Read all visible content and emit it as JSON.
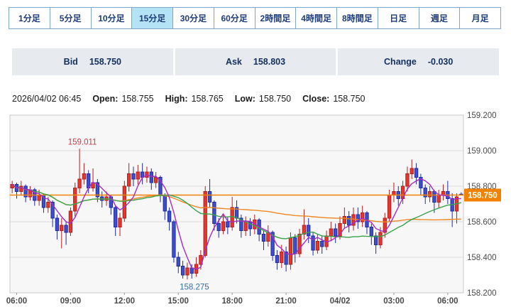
{
  "tabs": {
    "items": [
      {
        "id": "1min",
        "label": "1分足",
        "selected": false
      },
      {
        "id": "5min",
        "label": "5分足",
        "selected": false
      },
      {
        "id": "10min",
        "label": "10分足",
        "selected": false
      },
      {
        "id": "15min",
        "label": "15分足",
        "selected": true
      },
      {
        "id": "30min",
        "label": "30分足",
        "selected": false
      },
      {
        "id": "60min",
        "label": "60分足",
        "selected": false
      },
      {
        "id": "2hour",
        "label": "2時間足",
        "selected": false
      },
      {
        "id": "4hour",
        "label": "4時間足",
        "selected": false
      },
      {
        "id": "8hour",
        "label": "8時間足",
        "selected": false
      },
      {
        "id": "day",
        "label": "日足",
        "selected": false
      },
      {
        "id": "week",
        "label": "週足",
        "selected": false
      },
      {
        "id": "month",
        "label": "月足",
        "selected": false
      }
    ]
  },
  "quote_bar": {
    "bid_label": "Bid",
    "bid_value": "158.750",
    "ask_label": "Ask",
    "ask_value": "158.803",
    "change_label": "Change",
    "change_value": "-0.030"
  },
  "ohlc_bar": {
    "datetime": "2026/04/02 06:45",
    "open_label": "Open:",
    "open": "158.755",
    "high_label": "High:",
    "high": "158.765",
    "low_label": "Low:",
    "low": "158.750",
    "close_label": "Close:",
    "close": "158.750"
  },
  "chart_data": {
    "type": "candlestick",
    "interval": "15min",
    "ylim": [
      158.2,
      159.2
    ],
    "grid": true,
    "y_ticks": [
      {
        "label": "159.200",
        "value": 159.2
      },
      {
        "label": "159.000",
        "value": 159.0
      },
      {
        "label": "158.800",
        "value": 158.8
      },
      {
        "label": "158.600",
        "value": 158.6
      },
      {
        "label": "158.400",
        "value": 158.4
      },
      {
        "label": "158.200",
        "value": 158.2
      }
    ],
    "x_ticks": [
      {
        "text": "06:00",
        "index": 1
      },
      {
        "text": "09:00",
        "index": 13
      },
      {
        "text": "12:00",
        "index": 25
      },
      {
        "text": "15:00",
        "index": 37
      },
      {
        "text": "18:00",
        "index": 49
      },
      {
        "text": "21:00",
        "index": 61
      },
      {
        "text": "04/02",
        "index": 73
      },
      {
        "text": "03:00",
        "index": 85
      },
      {
        "text": "06:00",
        "index": 97
      }
    ],
    "annotations": {
      "high": {
        "text": "159.011",
        "price": 159.011,
        "index": 15,
        "color": "#d23646"
      },
      "low": {
        "text": "158.275",
        "price": 158.275,
        "index": 39,
        "color": "#3a6faa"
      }
    },
    "current_price_line": {
      "value": 158.75,
      "label": "158.750",
      "color": "#f08200",
      "text_color": "#ffffff"
    },
    "colors": {
      "up_fill": "#e5372c",
      "up_stroke": "#b41e1e",
      "down_fill": "#3f4ec9",
      "down_stroke": "#1f2ba0",
      "plot_bg": "#f7f7f7",
      "plot_border": "#c8c8c8",
      "gridline": "#dedede",
      "axis_text": "#4a4a4a"
    },
    "moving_averages": [
      {
        "name": "SMA5",
        "period": 5,
        "color": "#a32cc4"
      },
      {
        "name": "SMA25",
        "period": 25,
        "color": "#3aa34d"
      },
      {
        "name": "SMA75",
        "period": 75,
        "color": "#ef8722"
      }
    ],
    "candles": [
      [
        "05:45",
        158.79,
        158.83,
        158.76,
        158.81
      ],
      [
        "06:00",
        158.81,
        158.82,
        158.73,
        158.77
      ],
      [
        "06:15",
        158.77,
        158.83,
        158.75,
        158.8
      ],
      [
        "06:30",
        158.8,
        158.81,
        158.71,
        158.74
      ],
      [
        "06:45",
        158.74,
        158.8,
        158.72,
        158.78
      ],
      [
        "07:00",
        158.78,
        158.79,
        158.69,
        158.72
      ],
      [
        "07:15",
        158.72,
        158.78,
        158.69,
        158.75
      ],
      [
        "07:30",
        158.75,
        158.76,
        158.65,
        158.68
      ],
      [
        "07:45",
        158.68,
        158.74,
        158.65,
        158.71
      ],
      [
        "08:00",
        158.71,
        158.72,
        158.57,
        158.62
      ],
      [
        "08:15",
        158.62,
        158.64,
        158.5,
        158.55
      ],
      [
        "08:30",
        158.55,
        158.62,
        158.45,
        158.58
      ],
      [
        "08:45",
        158.58,
        158.6,
        158.47,
        158.54
      ],
      [
        "09:00",
        158.54,
        158.68,
        158.52,
        158.66
      ],
      [
        "09:15",
        158.66,
        158.82,
        158.63,
        158.79
      ],
      [
        "09:30",
        158.79,
        159.011,
        158.76,
        158.84
      ],
      [
        "09:45",
        158.84,
        158.93,
        158.81,
        158.87
      ],
      [
        "10:00",
        158.87,
        158.89,
        158.76,
        158.79
      ],
      [
        "10:15",
        158.79,
        158.9,
        158.77,
        158.82
      ],
      [
        "10:30",
        158.82,
        158.84,
        158.71,
        158.74
      ],
      [
        "10:45",
        158.74,
        158.77,
        158.68,
        158.72
      ],
      [
        "11:00",
        158.72,
        158.77,
        158.69,
        158.74
      ],
      [
        "11:15",
        158.74,
        158.75,
        158.64,
        158.68
      ],
      [
        "11:30",
        158.68,
        158.69,
        158.52,
        158.57
      ],
      [
        "11:45",
        158.57,
        158.65,
        158.52,
        158.62
      ],
      [
        "12:00",
        158.62,
        158.83,
        158.6,
        158.8
      ],
      [
        "12:15",
        158.8,
        158.93,
        158.77,
        158.87
      ],
      [
        "12:30",
        158.87,
        158.91,
        158.8,
        158.84
      ],
      [
        "12:45",
        158.84,
        158.92,
        158.81,
        158.88
      ],
      [
        "13:00",
        158.88,
        158.93,
        158.81,
        158.85
      ],
      [
        "13:15",
        158.85,
        158.91,
        158.82,
        158.88
      ],
      [
        "13:30",
        158.88,
        158.9,
        158.78,
        158.82
      ],
      [
        "13:45",
        158.82,
        158.88,
        158.79,
        158.85
      ],
      [
        "14:00",
        158.85,
        158.86,
        158.71,
        158.75
      ],
      [
        "14:15",
        158.75,
        158.76,
        158.61,
        158.66
      ],
      [
        "14:30",
        158.66,
        158.68,
        158.55,
        158.6
      ],
      [
        "14:45",
        158.6,
        158.61,
        158.37,
        158.4
      ],
      [
        "15:00",
        158.4,
        158.43,
        158.31,
        158.35
      ],
      [
        "15:15",
        158.35,
        158.38,
        158.28,
        158.3
      ],
      [
        "15:30",
        158.3,
        158.37,
        158.275,
        158.34
      ],
      [
        "15:45",
        158.34,
        158.36,
        158.28,
        158.31
      ],
      [
        "16:00",
        158.31,
        158.4,
        158.29,
        158.36
      ],
      [
        "16:15",
        158.36,
        158.44,
        158.33,
        158.41
      ],
      [
        "16:30",
        158.41,
        158.8,
        158.4,
        158.77
      ],
      [
        "16:45",
        158.77,
        158.84,
        158.68,
        158.71
      ],
      [
        "17:00",
        158.71,
        158.72,
        158.55,
        158.59
      ],
      [
        "17:15",
        158.59,
        158.62,
        158.51,
        158.55
      ],
      [
        "17:30",
        158.55,
        158.64,
        158.53,
        158.6
      ],
      [
        "17:45",
        158.6,
        158.63,
        158.53,
        158.57
      ],
      [
        "18:00",
        158.57,
        158.74,
        158.55,
        158.68
      ],
      [
        "18:15",
        158.68,
        158.72,
        158.59,
        158.62
      ],
      [
        "18:30",
        158.62,
        158.64,
        158.51,
        158.55
      ],
      [
        "18:45",
        158.55,
        158.63,
        158.52,
        158.6
      ],
      [
        "19:00",
        158.6,
        158.62,
        158.52,
        158.56
      ],
      [
        "19:15",
        158.56,
        158.64,
        158.53,
        158.61
      ],
      [
        "19:30",
        158.61,
        158.62,
        158.49,
        158.53
      ],
      [
        "19:45",
        158.53,
        158.55,
        158.44,
        158.49
      ],
      [
        "20:00",
        158.49,
        158.58,
        158.46,
        158.54
      ],
      [
        "20:15",
        158.54,
        158.55,
        158.38,
        158.41
      ],
      [
        "20:30",
        158.41,
        158.44,
        158.33,
        158.37
      ],
      [
        "20:45",
        158.37,
        158.47,
        158.34,
        158.43
      ],
      [
        "21:00",
        158.43,
        158.46,
        158.32,
        158.36
      ],
      [
        "21:15",
        158.36,
        158.54,
        158.33,
        158.51
      ],
      [
        "21:30",
        158.51,
        158.53,
        158.37,
        158.42
      ],
      [
        "21:45",
        158.42,
        158.56,
        158.4,
        158.53
      ],
      [
        "22:00",
        158.53,
        158.67,
        158.5,
        158.58
      ],
      [
        "22:15",
        158.58,
        158.62,
        158.48,
        158.52
      ],
      [
        "22:30",
        158.52,
        158.54,
        158.41,
        158.44
      ],
      [
        "22:45",
        158.44,
        158.53,
        158.42,
        158.49
      ],
      [
        "23:00",
        158.49,
        158.52,
        158.42,
        158.46
      ],
      [
        "23:15",
        158.46,
        158.55,
        158.44,
        158.52
      ],
      [
        "23:30",
        158.52,
        158.6,
        158.49,
        158.56
      ],
      [
        "23:45",
        158.56,
        158.59,
        158.48,
        158.52
      ],
      [
        "00:00",
        158.52,
        158.63,
        158.5,
        158.59
      ],
      [
        "00:15",
        158.59,
        158.68,
        158.56,
        158.63
      ],
      [
        "00:30",
        158.63,
        158.66,
        158.54,
        158.58
      ],
      [
        "00:45",
        158.58,
        158.68,
        158.55,
        158.64
      ],
      [
        "01:00",
        158.64,
        158.68,
        158.56,
        158.6
      ],
      [
        "01:15",
        158.6,
        158.69,
        158.57,
        158.65
      ],
      [
        "01:30",
        158.65,
        158.66,
        158.53,
        158.57
      ],
      [
        "01:45",
        158.57,
        158.59,
        158.47,
        158.52
      ],
      [
        "02:00",
        158.52,
        158.54,
        158.42,
        158.47
      ],
      [
        "02:15",
        158.47,
        158.57,
        158.45,
        158.54
      ],
      [
        "02:30",
        158.54,
        158.65,
        158.51,
        158.62
      ],
      [
        "02:45",
        158.62,
        158.78,
        158.6,
        158.75
      ],
      [
        "03:00",
        158.75,
        158.82,
        158.71,
        158.77
      ],
      [
        "03:15",
        158.77,
        158.8,
        158.69,
        158.73
      ],
      [
        "03:30",
        158.73,
        158.83,
        158.7,
        158.8
      ],
      [
        "03:45",
        158.8,
        158.91,
        158.77,
        158.87
      ],
      [
        "04:00",
        158.87,
        158.95,
        158.84,
        158.9
      ],
      [
        "04:15",
        158.9,
        158.93,
        158.81,
        158.85
      ],
      [
        "04:30",
        158.85,
        158.87,
        158.75,
        158.79
      ],
      [
        "04:45",
        158.79,
        158.81,
        158.7,
        158.74
      ],
      [
        "05:00",
        158.74,
        158.8,
        158.71,
        158.77
      ],
      [
        "05:15",
        158.77,
        158.78,
        158.65,
        158.71
      ],
      [
        "05:30",
        158.71,
        158.78,
        158.68,
        158.75
      ],
      [
        "05:45",
        158.75,
        158.81,
        158.72,
        158.77
      ],
      [
        "06:00",
        158.77,
        158.83,
        158.7,
        158.73
      ],
      [
        "06:15",
        158.73,
        158.76,
        158.57,
        158.66
      ],
      [
        "06:30",
        158.66,
        158.76,
        158.59,
        158.74
      ],
      [
        "06:45",
        158.755,
        158.765,
        158.75,
        158.75
      ]
    ]
  }
}
